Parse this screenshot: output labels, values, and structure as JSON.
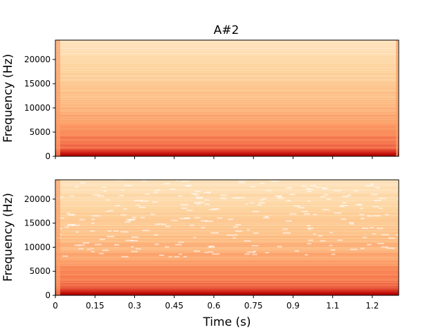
{
  "chart_data": {
    "type": "heatmap",
    "title": "A#2",
    "xlabel": "Time (s)",
    "ylabel": "Frequency (Hz)",
    "colormap": "OrRd",
    "xlim": [
      0,
      1.3
    ],
    "ylim": [
      0,
      24000
    ],
    "x_ticks": [
      0,
      0.15,
      0.3,
      0.45,
      0.6,
      0.75,
      0.9,
      1.05,
      1.2
    ],
    "x_tick_labels": [
      "0",
      "0.15",
      "0.3",
      "0.45",
      "0.6",
      "0.75",
      "0.9",
      "1.1",
      "1.2"
    ],
    "y_ticks": [
      0,
      5000,
      10000,
      15000,
      20000
    ],
    "y_tick_labels": [
      "0",
      "5000",
      "10000",
      "15000",
      "20000"
    ],
    "panels": [
      {
        "name": "top",
        "has_title": true,
        "has_xlabel": false,
        "show_x_tick_labels": false,
        "edge_bands": true,
        "texture_noise": false
      },
      {
        "name": "bottom",
        "has_title": false,
        "has_xlabel": true,
        "show_x_tick_labels": true,
        "edge_bands": false,
        "texture_noise": true
      }
    ]
  }
}
